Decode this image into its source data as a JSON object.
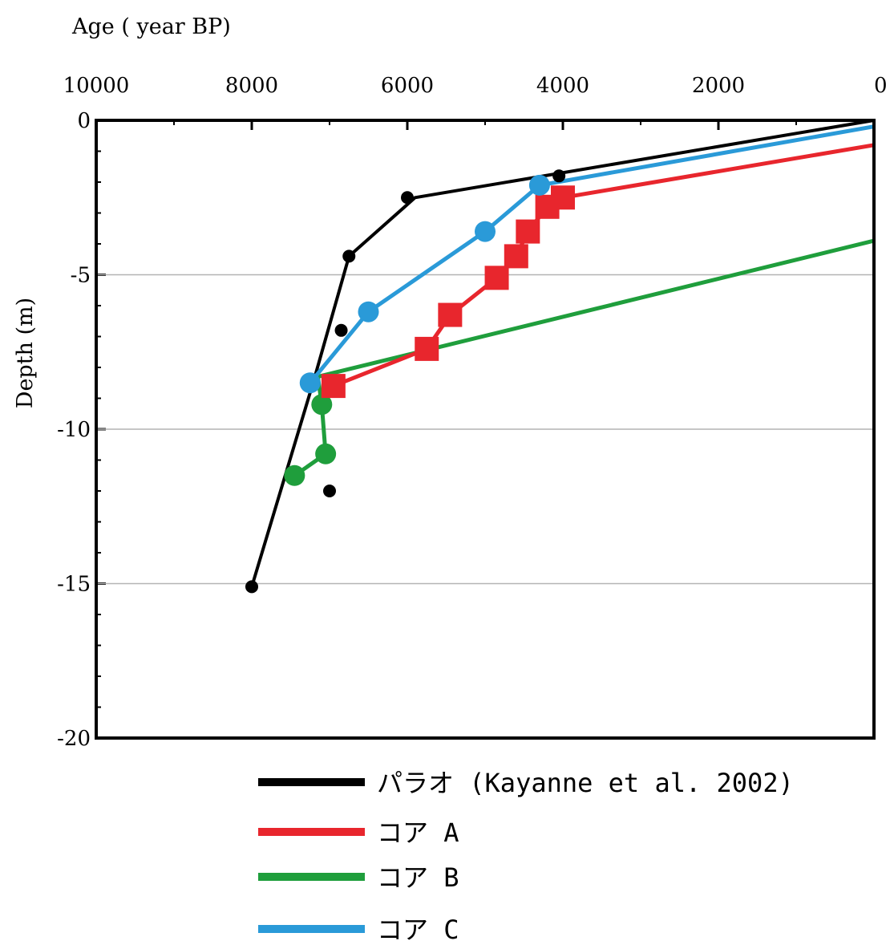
{
  "chart_data": {
    "type": "line",
    "xlabel": "Age ( year BP)",
    "ylabel": "Depth (m)",
    "xlim": [
      10000,
      0
    ],
    "ylim": [
      -20,
      0
    ],
    "x_axis_position": "top",
    "x_reversed": true,
    "x_ticks": [
      10000,
      8000,
      6000,
      4000,
      2000,
      0
    ],
    "x_tick_labels": [
      "10000",
      "8000",
      "6000",
      "4000",
      "2000",
      "0"
    ],
    "y_ticks": [
      0,
      -5,
      -10,
      -15,
      -20
    ],
    "y_tick_labels": [
      "0",
      "-5",
      "-10",
      "-15",
      "-20"
    ],
    "grid": "horizontal at -5, -10, -15",
    "legend_position": "bottom",
    "series": [
      {
        "name": "パラオ (Kayanne et al. 2002)",
        "color": "#000000",
        "marker": "small-circle",
        "line": [
          {
            "x": 0,
            "y": 0
          },
          {
            "x": 5900,
            "y": -2.5
          },
          {
            "x": 6750,
            "y": -4.4
          },
          {
            "x": 7200,
            "y": -8.4
          },
          {
            "x": 8000,
            "y": -15.1
          }
        ],
        "points": [
          {
            "x": 4050,
            "y": -1.8
          },
          {
            "x": 6000,
            "y": -2.5
          },
          {
            "x": 6750,
            "y": -4.4
          },
          {
            "x": 6850,
            "y": -6.8
          },
          {
            "x": 7000,
            "y": -12.0
          },
          {
            "x": 8000,
            "y": -15.1
          }
        ]
      },
      {
        "name": "コア A",
        "color": "#e8262d",
        "marker": "square",
        "line": [
          {
            "x": 0,
            "y": -0.8
          },
          {
            "x": 4000,
            "y": -2.5
          },
          {
            "x": 4200,
            "y": -2.8
          },
          {
            "x": 4450,
            "y": -3.6
          },
          {
            "x": 4600,
            "y": -4.4
          },
          {
            "x": 4850,
            "y": -5.1
          },
          {
            "x": 5450,
            "y": -6.3
          },
          {
            "x": 5750,
            "y": -7.4
          },
          {
            "x": 6950,
            "y": -8.6
          }
        ],
        "points": [
          {
            "x": 4000,
            "y": -2.5
          },
          {
            "x": 4200,
            "y": -2.8
          },
          {
            "x": 4450,
            "y": -3.6
          },
          {
            "x": 4600,
            "y": -4.4
          },
          {
            "x": 4850,
            "y": -5.1
          },
          {
            "x": 5450,
            "y": -6.3
          },
          {
            "x": 5750,
            "y": -7.4
          },
          {
            "x": 6950,
            "y": -8.6
          }
        ]
      },
      {
        "name": "コア B",
        "color": "#1f9e3c",
        "marker": "circle",
        "line": [
          {
            "x": 0,
            "y": -3.9
          },
          {
            "x": 7150,
            "y": -8.3
          },
          {
            "x": 7100,
            "y": -9.2
          },
          {
            "x": 7050,
            "y": -10.8
          },
          {
            "x": 7450,
            "y": -11.5
          }
        ],
        "points": [
          {
            "x": 7100,
            "y": -9.2
          },
          {
            "x": 7050,
            "y": -10.8
          },
          {
            "x": 7450,
            "y": -11.5
          }
        ]
      },
      {
        "name": "コア C",
        "color": "#2a9ad8",
        "marker": "circle",
        "line": [
          {
            "x": 0,
            "y": -0.2
          },
          {
            "x": 4300,
            "y": -2.1
          },
          {
            "x": 5000,
            "y": -3.6
          },
          {
            "x": 6500,
            "y": -6.2
          },
          {
            "x": 7250,
            "y": -8.5
          }
        ],
        "points": [
          {
            "x": 4300,
            "y": -2.1
          },
          {
            "x": 5000,
            "y": -3.6
          },
          {
            "x": 6500,
            "y": -6.2
          },
          {
            "x": 7250,
            "y": -8.5
          }
        ]
      }
    ]
  }
}
